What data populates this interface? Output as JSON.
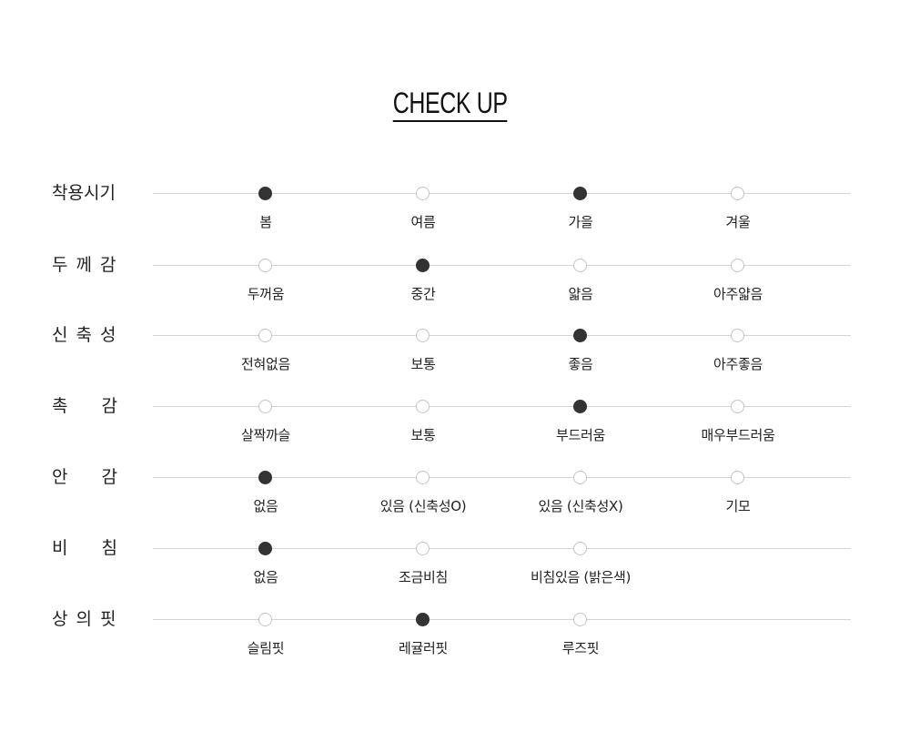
{
  "title": "CHECK UP",
  "rows": [
    {
      "label": "착용시기",
      "options": [
        {
          "label": "봄",
          "selected": true
        },
        {
          "label": "여름",
          "selected": false
        },
        {
          "label": "가을",
          "selected": true
        },
        {
          "label": "겨울",
          "selected": false
        }
      ]
    },
    {
      "label": "두께감",
      "options": [
        {
          "label": "두꺼움",
          "selected": false
        },
        {
          "label": "중간",
          "selected": true
        },
        {
          "label": "얇음",
          "selected": false
        },
        {
          "label": "아주얇음",
          "selected": false
        }
      ]
    },
    {
      "label": "신축성",
      "options": [
        {
          "label": "전혀없음",
          "selected": false
        },
        {
          "label": "보통",
          "selected": false
        },
        {
          "label": "좋음",
          "selected": true
        },
        {
          "label": "아주좋음",
          "selected": false
        }
      ]
    },
    {
      "label": "촉감",
      "options": [
        {
          "label": "살짝까슬",
          "selected": false
        },
        {
          "label": "보통",
          "selected": false
        },
        {
          "label": "부드러움",
          "selected": true
        },
        {
          "label": "매우부드러움",
          "selected": false
        }
      ]
    },
    {
      "label": "안감",
      "options": [
        {
          "label": "없음",
          "selected": true
        },
        {
          "label": "있음 (신축성O)",
          "selected": false
        },
        {
          "label": "있음 (신축성X)",
          "selected": false
        },
        {
          "label": "기모",
          "selected": false
        }
      ]
    },
    {
      "label": "비침",
      "options": [
        {
          "label": "없음",
          "selected": true
        },
        {
          "label": "조금비침",
          "selected": false
        },
        {
          "label": "비침있음 (밝은색)",
          "selected": false
        }
      ]
    },
    {
      "label": "상의핏",
      "options": [
        {
          "label": "슬림핏",
          "selected": false
        },
        {
          "label": "레귤러핏",
          "selected": true
        },
        {
          "label": "루즈핏",
          "selected": false
        }
      ]
    }
  ]
}
